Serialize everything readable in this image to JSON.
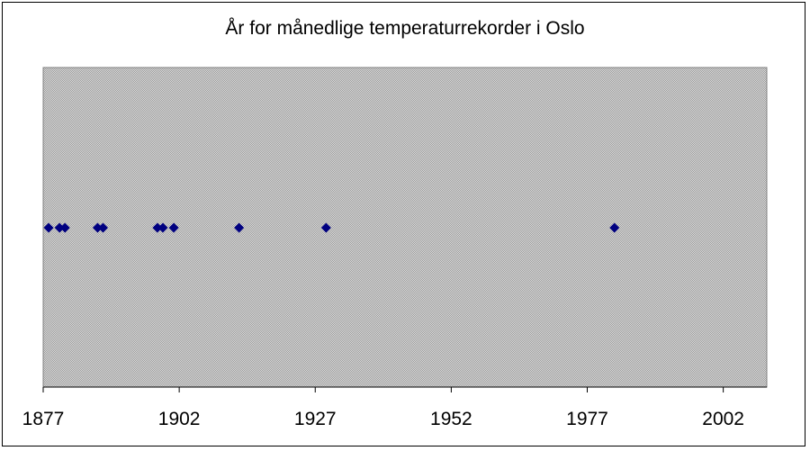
{
  "chart_data": {
    "type": "scatter",
    "title": "År for månedlige temperaturrekorder i Oslo",
    "xlabel": "",
    "ylabel": "",
    "xlim": [
      1877,
      2010
    ],
    "xticks": [
      1877,
      1902,
      1927,
      1952,
      1977,
      2002
    ],
    "x": [
      1878,
      1880,
      1881,
      1887,
      1888,
      1898,
      1899,
      1901,
      1913,
      1929,
      1982
    ],
    "y": [
      0,
      0,
      0,
      0,
      0,
      0,
      0,
      0,
      0,
      0,
      0
    ],
    "marker_color": "#000080",
    "plot_background": "#c0c0c0",
    "grid": false,
    "legend": "none"
  }
}
